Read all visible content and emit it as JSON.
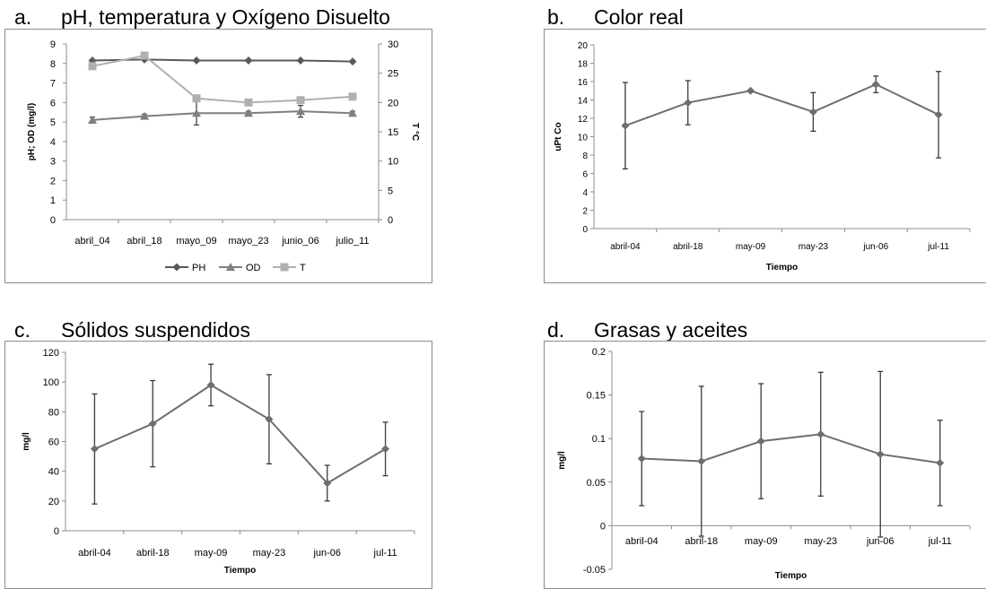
{
  "panels": [
    {
      "letter": "a.",
      "title": "pH, temperatura y Oxígeno Disuelto"
    },
    {
      "letter": "b.",
      "title": "Color real"
    },
    {
      "letter": "c.",
      "title": "Sólidos suspendidos"
    },
    {
      "letter": "d.",
      "title": "Grasas y aceites"
    }
  ],
  "chart_data": [
    {
      "type": "line",
      "categories": [
        "abril_04",
        "abril_18",
        "mayo_09",
        "mayo_23",
        "junio_06",
        "julio_11"
      ],
      "ylabel": "pH; OD (mg/l)",
      "y2label": "T °C",
      "ylim": [
        0,
        9
      ],
      "yticks": [
        0,
        1,
        2,
        3,
        4,
        5,
        6,
        7,
        8,
        9
      ],
      "y2lim": [
        0,
        30
      ],
      "y2ticks": [
        0,
        5,
        10,
        15,
        20,
        25,
        30
      ],
      "legend_position": "bottom",
      "series": [
        {
          "name": "PH",
          "axis": "left",
          "marker": "diamond",
          "color": "#595959",
          "values": [
            8.15,
            8.2,
            8.15,
            8.15,
            8.15,
            8.1
          ]
        },
        {
          "name": "OD",
          "axis": "left",
          "marker": "triangle",
          "color": "#7f7f7f",
          "values": [
            5.1,
            5.3,
            5.45,
            5.45,
            5.55,
            5.45
          ],
          "errors": [
            0.15,
            0.1,
            0.6,
            0.1,
            0.3,
            0.1
          ]
        },
        {
          "name": "T",
          "axis": "right",
          "marker": "square",
          "color": "#b0b0b0",
          "values": [
            26.2,
            28.0,
            20.7,
            20.0,
            20.4,
            21.0
          ]
        }
      ]
    },
    {
      "type": "line",
      "categories": [
        "abril-04",
        "abril-18",
        "may-09",
        "may-23",
        "jun-06",
        "jul-11"
      ],
      "xlabel": "Tiempo",
      "ylabel": "uPt Co",
      "ylim": [
        0,
        20
      ],
      "yticks": [
        0,
        2,
        4,
        6,
        8,
        10,
        12,
        14,
        16,
        18,
        20
      ],
      "series": [
        {
          "values": [
            11.2,
            13.7,
            15.0,
            12.7,
            15.7,
            12.4
          ],
          "errors": [
            4.7,
            2.4,
            0.1,
            2.1,
            0.9,
            4.7
          ]
        }
      ]
    },
    {
      "type": "line",
      "categories": [
        "abril-04",
        "abril-18",
        "may-09",
        "may-23",
        "jun-06",
        "jul-11"
      ],
      "xlabel": "Tiempo",
      "ylabel": "mg/l",
      "ylim": [
        0,
        120
      ],
      "yticks": [
        0,
        20,
        40,
        60,
        80,
        100,
        120
      ],
      "series": [
        {
          "values": [
            55,
            72,
            98,
            75,
            32,
            55
          ],
          "errors": [
            37,
            29,
            14,
            30,
            12,
            18
          ]
        }
      ]
    },
    {
      "type": "line",
      "categories": [
        "abril-04",
        "abril-18",
        "may-09",
        "may-23",
        "jun-06",
        "jul-11"
      ],
      "xlabel": "Tiempo",
      "ylabel": "mg/l",
      "ylim": [
        -0.05,
        0.2
      ],
      "yticks": [
        -0.05,
        0,
        0.05,
        0.1,
        0.15,
        0.2
      ],
      "series": [
        {
          "values": [
            0.077,
            0.074,
            0.097,
            0.105,
            0.082,
            0.072
          ],
          "errors": [
            0.054,
            0.086,
            0.066,
            0.071,
            0.095,
            0.049
          ]
        }
      ]
    }
  ]
}
